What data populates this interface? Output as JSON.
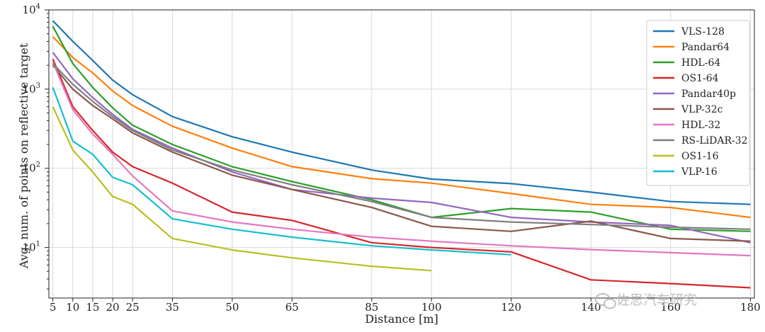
{
  "watermark": {
    "text": "佐思汽车研究",
    "icon": "wechat-icon"
  },
  "chart_data": {
    "type": "line",
    "xlabel": "Distance [m]",
    "ylabel": "Avg. num. of points on reflective target",
    "yscale": "log",
    "xlim": [
      4,
      181
    ],
    "ylim": [
      2.3,
      10000
    ],
    "grid": true,
    "legend_position": "top-right",
    "x_ticks": [
      5,
      10,
      15,
      20,
      25,
      35,
      50,
      65,
      85,
      100,
      120,
      140,
      160,
      180
    ],
    "x_tick_labels": [
      "5",
      "10",
      "15",
      "20",
      "25",
      "35",
      "50",
      "65",
      "85",
      "100",
      "120",
      "140",
      "160",
      "180"
    ],
    "y_ticks": [
      10,
      100,
      1000,
      10000
    ],
    "y_tick_labels": [
      {
        "base": "10",
        "exp": "1"
      },
      {
        "base": "10",
        "exp": "2"
      },
      {
        "base": "10",
        "exp": "3"
      },
      {
        "base": "10",
        "exp": "4"
      }
    ],
    "series": [
      {
        "name": "VLS-128",
        "color": "#1f77b4",
        "x": [
          5,
          10,
          15,
          20,
          25,
          35,
          50,
          65,
          85,
          100,
          120,
          140,
          160,
          180
        ],
        "y": [
          7300,
          4000,
          2300,
          1300,
          850,
          450,
          250,
          160,
          95,
          73,
          64,
          50,
          38,
          35
        ]
      },
      {
        "name": "Pandar64",
        "color": "#ff7f0e",
        "x": [
          5,
          10,
          15,
          20,
          25,
          35,
          50,
          65,
          85,
          100,
          120,
          140,
          160,
          180
        ],
        "y": [
          4600,
          2500,
          1600,
          950,
          620,
          340,
          180,
          105,
          74,
          65,
          48,
          35,
          32,
          24
        ]
      },
      {
        "name": "HDL-64",
        "color": "#2ca02c",
        "x": [
          5,
          10,
          15,
          20,
          25,
          35,
          50,
          65,
          85,
          100,
          120,
          140,
          160,
          180
        ],
        "y": [
          6200,
          2100,
          1050,
          580,
          350,
          200,
          105,
          68,
          40,
          24,
          31,
          28,
          17,
          16
        ]
      },
      {
        "name": "OS1-64",
        "color": "#d62728",
        "x": [
          5,
          10,
          15,
          20,
          25,
          35,
          50,
          65,
          85,
          100,
          120,
          140,
          160,
          180
        ],
        "y": [
          2400,
          600,
          300,
          160,
          105,
          65,
          28,
          22,
          11.5,
          10,
          8.8,
          3.9,
          3.5,
          3.1
        ]
      },
      {
        "name": "Pandar40p",
        "color": "#9467bd",
        "x": [
          5,
          10,
          15,
          20,
          25,
          35,
          50,
          65,
          85,
          100,
          120,
          140,
          160,
          180
        ],
        "y": [
          2900,
          1350,
          780,
          480,
          310,
          180,
          90,
          54,
          42,
          37,
          24,
          21,
          19,
          11.5
        ]
      },
      {
        "name": "VLP-32c",
        "color": "#8c564b",
        "x": [
          5,
          10,
          15,
          20,
          25,
          35,
          50,
          65,
          85,
          100,
          120,
          140,
          160,
          180
        ],
        "y": [
          2000,
          1000,
          620,
          420,
          280,
          160,
          82,
          54,
          32,
          18.5,
          16,
          21.5,
          13,
          12
        ]
      },
      {
        "name": "HDL-32",
        "color": "#e377c2",
        "x": [
          5,
          10,
          15,
          20,
          25,
          35,
          50,
          65,
          85,
          100,
          120,
          140,
          160,
          180
        ],
        "y": [
          2200,
          550,
          270,
          150,
          80,
          29,
          21,
          17,
          13.5,
          12,
          10.5,
          9.4,
          8.6,
          7.9
        ]
      },
      {
        "name": "RS-LiDAR-32",
        "color": "#7f7f7f",
        "x": [
          5,
          10,
          15,
          20,
          25,
          35,
          50,
          65,
          85,
          100,
          120,
          140,
          160,
          180
        ],
        "y": [
          2100,
          1150,
          700,
          450,
          300,
          170,
          95,
          62,
          38,
          24,
          21,
          19.5,
          18,
          17
        ]
      },
      {
        "name": "OS1-16",
        "color": "#bcbd22",
        "x": [
          5,
          10,
          15,
          20,
          25,
          35,
          50,
          65,
          85,
          100
        ],
        "y": [
          600,
          170,
          90,
          44,
          35,
          13,
          9.3,
          7.4,
          5.8,
          5.1
        ]
      },
      {
        "name": "VLP-16",
        "color": "#17becf",
        "x": [
          5,
          10,
          15,
          20,
          25,
          35,
          50,
          65,
          85,
          100,
          120
        ],
        "y": [
          1050,
          220,
          150,
          77,
          62,
          23,
          17,
          13.5,
          10.5,
          9.3,
          8.1
        ]
      }
    ]
  }
}
